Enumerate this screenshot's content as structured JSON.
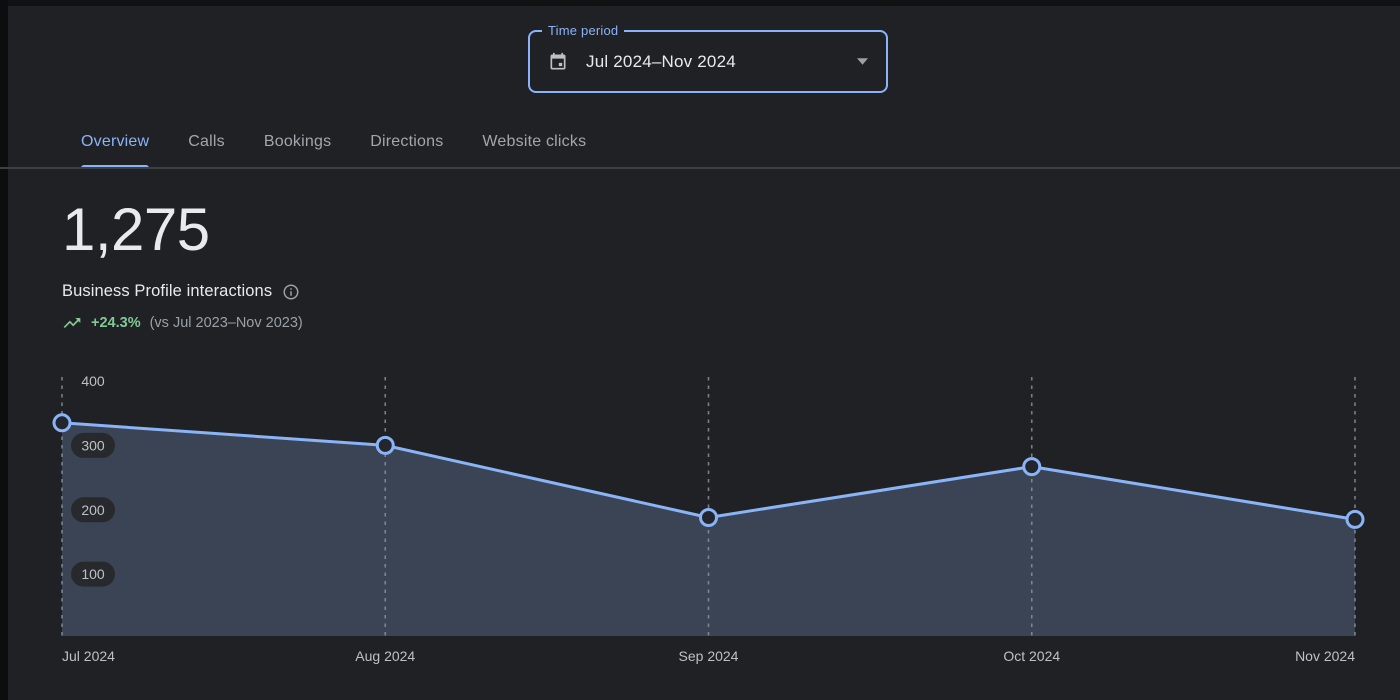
{
  "time_period_selector": {
    "label": "Time period",
    "value": "Jul 2024–Nov 2024"
  },
  "tabs": [
    {
      "label": "Overview",
      "active": true
    },
    {
      "label": "Calls",
      "active": false
    },
    {
      "label": "Bookings",
      "active": false
    },
    {
      "label": "Directions",
      "active": false
    },
    {
      "label": "Website clicks",
      "active": false
    }
  ],
  "metric": {
    "value": "1,275",
    "label": "Business Profile interactions",
    "trend_delta": "+24.3%",
    "trend_comparison": "(vs Jul 2023–Nov 2023)",
    "trend_direction": "up"
  },
  "colors": {
    "accent_blue": "#8ab4f8",
    "positive_green": "#81c995",
    "text_primary": "#e8eaed",
    "text_secondary": "#9aa0a6",
    "axis_label": "#bdc1c6",
    "tick_pill": "#28292c",
    "grid_dash": "#8a9097",
    "point_fill": "#23272d"
  },
  "chart_data": {
    "type": "area",
    "title": "Business Profile interactions over time",
    "x": [
      "Jul 2024",
      "Aug 2024",
      "Sep 2024",
      "Oct 2024",
      "Nov 2024"
    ],
    "values": [
      335,
      300,
      188,
      267,
      185
    ],
    "y_ticks": [
      400,
      300,
      200,
      100
    ],
    "ylim": [
      0,
      400
    ],
    "grid": "vertical-dashed",
    "legend": "none",
    "line_color": "#8ab4f8",
    "fill_color": "#3b4455"
  }
}
